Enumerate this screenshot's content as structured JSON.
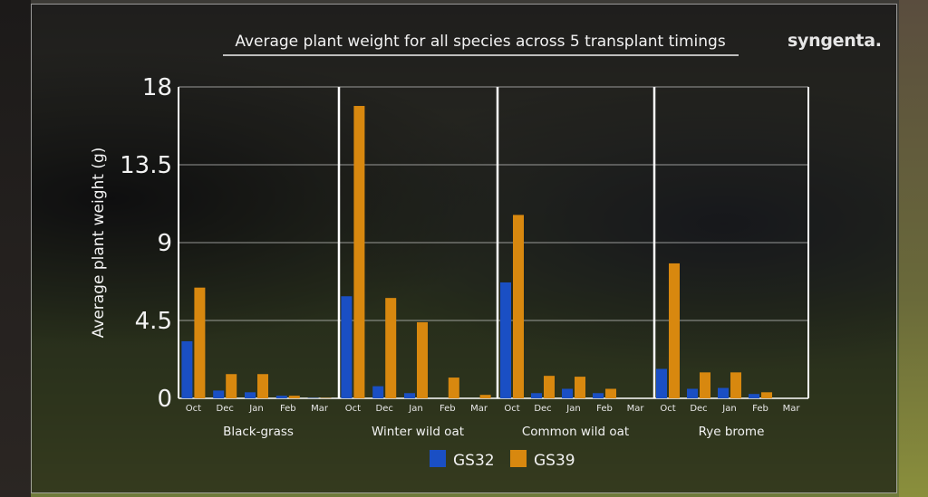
{
  "brand": {
    "logo_text": "syngenta."
  },
  "chart_data": {
    "type": "bar",
    "title": "Average plant weight for all species across 5 transplant timings",
    "ylabel": "Average plant weight (g)",
    "xlabel": "",
    "ylim": [
      0,
      18
    ],
    "yticks": [
      "0",
      "4.5",
      "9",
      "13.5",
      "18"
    ],
    "ytick_values": [
      0,
      4.5,
      9,
      13.5,
      18
    ],
    "grid": true,
    "legend_position": "bottom",
    "colors": {
      "GS32": "#1a4fc4",
      "GS39": "#d8880f"
    },
    "months": [
      "Oct",
      "Dec",
      "Jan",
      "Feb",
      "Mar"
    ],
    "groups": [
      {
        "name": "Black-grass",
        "series": [
          {
            "name": "GS32",
            "values": [
              3.3,
              0.45,
              0.35,
              0.15,
              0.02
            ]
          },
          {
            "name": "GS39",
            "values": [
              6.4,
              1.4,
              1.4,
              0.15,
              0.02
            ]
          }
        ]
      },
      {
        "name": "Winter wild oat",
        "series": [
          {
            "name": "GS32",
            "values": [
              5.9,
              0.7,
              0.3,
              0.0,
              0.0
            ]
          },
          {
            "name": "GS39",
            "values": [
              16.9,
              5.8,
              4.4,
              1.2,
              0.2
            ]
          }
        ]
      },
      {
        "name": "Common wild oat",
        "series": [
          {
            "name": "GS32",
            "values": [
              6.7,
              0.3,
              0.55,
              0.3,
              0.0
            ]
          },
          {
            "name": "GS39",
            "values": [
              10.6,
              1.3,
              1.25,
              0.55,
              0.0
            ]
          }
        ]
      },
      {
        "name": "Rye brome",
        "series": [
          {
            "name": "GS32",
            "values": [
              1.7,
              0.55,
              0.6,
              0.25,
              0.0
            ]
          },
          {
            "name": "GS39",
            "values": [
              7.8,
              1.5,
              1.5,
              0.35,
              0.0
            ]
          }
        ]
      }
    ],
    "legend": [
      {
        "name": "GS32",
        "color": "#1a4fc4"
      },
      {
        "name": "GS39",
        "color": "#d8880f"
      }
    ]
  }
}
